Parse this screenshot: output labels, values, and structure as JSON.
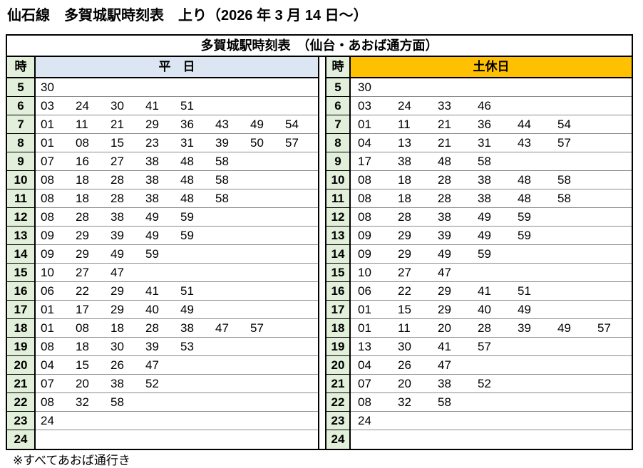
{
  "page": {
    "title": "仙石線　多賀城駅時刻表　上り（2026 年 3 月 14 日～）",
    "footnote": "※すべてあおば通行き"
  },
  "table": {
    "title": "多賀城駅時刻表　（仙台・あおば通方面）",
    "hour_header": "時",
    "sections": [
      {
        "id": "weekday",
        "label": "平　日",
        "header_bg": "#dce6f2",
        "rows": [
          {
            "hour": "5",
            "minutes": [
              "30"
            ]
          },
          {
            "hour": "6",
            "minutes": [
              "03",
              "24",
              "30",
              "41",
              "51"
            ]
          },
          {
            "hour": "7",
            "minutes": [
              "01",
              "11",
              "21",
              "29",
              "36",
              "43",
              "49",
              "54"
            ]
          },
          {
            "hour": "8",
            "minutes": [
              "01",
              "08",
              "15",
              "23",
              "31",
              "39",
              "50",
              "57"
            ]
          },
          {
            "hour": "9",
            "minutes": [
              "07",
              "16",
              "27",
              "38",
              "48",
              "58"
            ]
          },
          {
            "hour": "10",
            "minutes": [
              "08",
              "18",
              "28",
              "38",
              "48",
              "58"
            ]
          },
          {
            "hour": "11",
            "minutes": [
              "08",
              "18",
              "28",
              "38",
              "48",
              "58"
            ]
          },
          {
            "hour": "12",
            "minutes": [
              "08",
              "28",
              "38",
              "49",
              "59"
            ]
          },
          {
            "hour": "13",
            "minutes": [
              "09",
              "29",
              "39",
              "49",
              "59"
            ]
          },
          {
            "hour": "14",
            "minutes": [
              "09",
              "29",
              "49",
              "59"
            ]
          },
          {
            "hour": "15",
            "minutes": [
              "10",
              "27",
              "47"
            ]
          },
          {
            "hour": "16",
            "minutes": [
              "06",
              "22",
              "29",
              "41",
              "51"
            ]
          },
          {
            "hour": "17",
            "minutes": [
              "01",
              "17",
              "29",
              "40",
              "49"
            ]
          },
          {
            "hour": "18",
            "minutes": [
              "01",
              "08",
              "18",
              "28",
              "38",
              "47",
              "57"
            ]
          },
          {
            "hour": "19",
            "minutes": [
              "08",
              "18",
              "30",
              "39",
              "53"
            ]
          },
          {
            "hour": "20",
            "minutes": [
              "04",
              "15",
              "26",
              "47"
            ]
          },
          {
            "hour": "21",
            "minutes": [
              "07",
              "20",
              "38",
              "52"
            ]
          },
          {
            "hour": "22",
            "minutes": [
              "08",
              "32",
              "58"
            ]
          },
          {
            "hour": "23",
            "minutes": [
              "24"
            ]
          },
          {
            "hour": "24",
            "minutes": []
          }
        ]
      },
      {
        "id": "holiday",
        "label": "土休日",
        "header_bg": "#ffc000",
        "rows": [
          {
            "hour": "5",
            "minutes": [
              "30"
            ]
          },
          {
            "hour": "6",
            "minutes": [
              "03",
              "24",
              "33",
              "46"
            ]
          },
          {
            "hour": "7",
            "minutes": [
              "01",
              "11",
              "21",
              "36",
              "44",
              "54"
            ]
          },
          {
            "hour": "8",
            "minutes": [
              "04",
              "13",
              "21",
              "31",
              "43",
              "57"
            ]
          },
          {
            "hour": "9",
            "minutes": [
              "17",
              "38",
              "48",
              "58"
            ]
          },
          {
            "hour": "10",
            "minutes": [
              "08",
              "18",
              "28",
              "38",
              "48",
              "58"
            ]
          },
          {
            "hour": "11",
            "minutes": [
              "08",
              "18",
              "28",
              "38",
              "48",
              "58"
            ]
          },
          {
            "hour": "12",
            "minutes": [
              "08",
              "28",
              "38",
              "49",
              "59"
            ]
          },
          {
            "hour": "13",
            "minutes": [
              "09",
              "29",
              "39",
              "49",
              "59"
            ]
          },
          {
            "hour": "14",
            "minutes": [
              "09",
              "29",
              "49",
              "59"
            ]
          },
          {
            "hour": "15",
            "minutes": [
              "10",
              "27",
              "47"
            ]
          },
          {
            "hour": "16",
            "minutes": [
              "06",
              "22",
              "29",
              "41",
              "51"
            ]
          },
          {
            "hour": "17",
            "minutes": [
              "01",
              "15",
              "29",
              "40",
              "49"
            ]
          },
          {
            "hour": "18",
            "minutes": [
              "01",
              "11",
              "20",
              "28",
              "39",
              "49",
              "57"
            ]
          },
          {
            "hour": "19",
            "minutes": [
              "13",
              "30",
              "41",
              "57"
            ]
          },
          {
            "hour": "20",
            "minutes": [
              "04",
              "26",
              "47"
            ]
          },
          {
            "hour": "21",
            "minutes": [
              "07",
              "20",
              "38",
              "52"
            ]
          },
          {
            "hour": "22",
            "minutes": [
              "08",
              "32",
              "58"
            ]
          },
          {
            "hour": "23",
            "minutes": [
              "24"
            ]
          },
          {
            "hour": "24",
            "minutes": []
          }
        ]
      }
    ]
  },
  "colors": {
    "hour_column_bg": "#e2efda",
    "weekday_header_bg": "#dce6f2",
    "holiday_header_bg": "#ffc000",
    "border": "#000000",
    "row_divider": "#8b8b8b"
  }
}
